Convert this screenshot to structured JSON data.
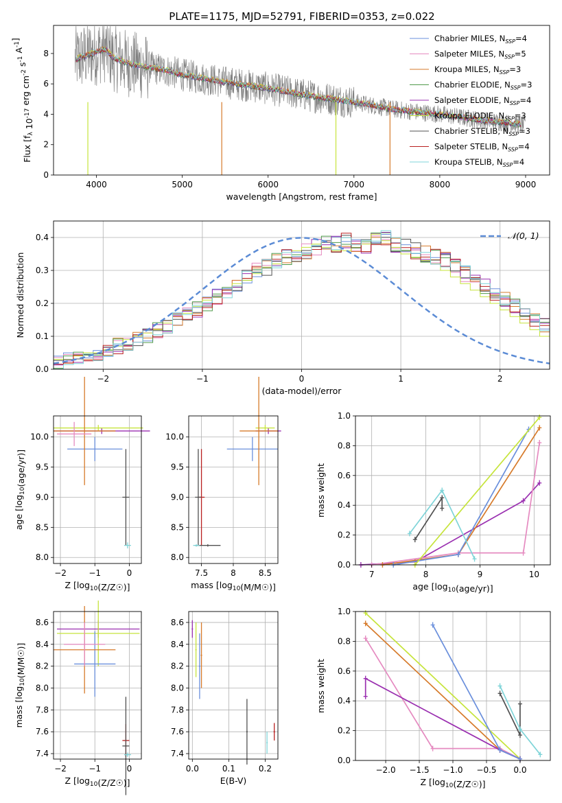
{
  "figure": {
    "title": "PLATE=1175, MJD=52791, FIBERID=0353, z=0.022"
  },
  "colors": {
    "Chabrier MILES": "#6a8fdc",
    "Salpeter MILES": "#e58ac0",
    "Kroupa MILES": "#d67a2a",
    "Chabrier ELODIE": "#4f9a4a",
    "Salpeter ELODIE": "#9a2fb0",
    "Kroupa ELODIE": "#c6e43b",
    "Chabrier STELIB": "#505050",
    "Salpeter STELIB": "#b81f1f",
    "Kroupa STELIB": "#7fd4d8",
    "data": "#808080",
    "normal_curve": "#5b8bd5"
  },
  "chart_data": [
    {
      "id": "spectrum",
      "type": "line",
      "xlabel": "wavelength [Angstrom, rest frame]",
      "ylabel": "Flux [f_λ 10^{-17} erg cm^{-2} s^{-1} A^{-1}]",
      "xlim": [
        3500,
        9280
      ],
      "ylim": [
        0,
        9.85
      ],
      "xticks": [
        4000,
        5000,
        6000,
        7000,
        8000,
        9000
      ],
      "yticks": [
        0,
        2,
        4,
        6,
        8
      ],
      "legend_loc": "upper right",
      "legend": [
        {
          "base": "Chabrier MILES, N",
          "n": "4"
        },
        {
          "base": "Salpeter MILES, N",
          "n": "5"
        },
        {
          "base": "Kroupa MILES, N",
          "n": "3"
        },
        {
          "base": "Chabrier ELODIE, N",
          "n": "3"
        },
        {
          "base": "Salpeter ELODIE, N",
          "n": "4"
        },
        {
          "base": "Kroupa ELODIE, N",
          "n": "3"
        },
        {
          "base": "Chabrier STELIB, N",
          "n": "3"
        },
        {
          "base": "Salpeter STELIB, N",
          "n": "4"
        },
        {
          "base": "Kroupa STELIB, N",
          "n": "4"
        }
      ],
      "continuum": {
        "x": [
          3750,
          3900,
          4000,
          4100,
          4200,
          4400,
          4600,
          4800,
          5000,
          5200,
          5500,
          6000,
          6500,
          7000,
          7500,
          8000,
          8500,
          9000
        ],
        "y": [
          7.6,
          7.9,
          8.1,
          8.3,
          7.7,
          7.3,
          7.1,
          6.9,
          6.6,
          6.4,
          6.1,
          5.7,
          5.2,
          4.8,
          4.3,
          4.0,
          3.6,
          3.3
        ]
      }
    },
    {
      "id": "residuals",
      "type": "area",
      "xlabel": "(data-model)/error",
      "ylabel": "Normed distribution",
      "xlim": [
        -2.5,
        2.5
      ],
      "ylim": [
        0,
        0.45
      ],
      "xticks": [
        -2,
        -1,
        0,
        1,
        2
      ],
      "yticks": [
        0.0,
        0.1,
        0.2,
        0.3,
        0.4
      ],
      "grid": true,
      "legend": [
        "𝒩(0, 1)"
      ],
      "legend_loc": "upper right",
      "bin_width": 0.1,
      "bins_from": -2.5,
      "histograms": [
        {
          "model": "Chabrier MILES",
          "values": [
            0.02,
            0.03,
            0.04,
            0.04,
            0.05,
            0.06,
            0.07,
            0.08,
            0.09,
            0.1,
            0.12,
            0.13,
            0.15,
            0.17,
            0.18,
            0.2,
            0.22,
            0.24,
            0.26,
            0.28,
            0.3,
            0.31,
            0.33,
            0.34,
            0.35,
            0.36,
            0.37,
            0.38,
            0.38,
            0.39,
            0.38,
            0.37,
            0.39,
            0.4,
            0.38,
            0.37,
            0.36,
            0.35,
            0.34,
            0.33,
            0.31,
            0.29,
            0.27,
            0.25,
            0.23,
            0.21,
            0.19,
            0.17,
            0.15,
            0.13
          ]
        },
        {
          "model": "Kroupa ELODIE",
          "values": [
            0.03,
            0.03,
            0.04,
            0.05,
            0.05,
            0.06,
            0.07,
            0.09,
            0.1,
            0.11,
            0.12,
            0.14,
            0.16,
            0.17,
            0.19,
            0.21,
            0.22,
            0.24,
            0.26,
            0.27,
            0.29,
            0.31,
            0.32,
            0.34,
            0.36,
            0.37,
            0.38,
            0.37,
            0.36,
            0.36,
            0.37,
            0.38,
            0.41,
            0.39,
            0.37,
            0.35,
            0.34,
            0.33,
            0.32,
            0.3,
            0.28,
            0.26,
            0.24,
            0.22,
            0.2,
            0.18,
            0.16,
            0.14,
            0.12,
            0.1
          ]
        }
      ],
      "normal": {
        "mean": 0,
        "sigma": 1
      }
    },
    {
      "id": "age-vs-Z",
      "type": "scatter",
      "xlabel": "Z [log10(Z/Z☉)]",
      "ylabel": "age [log10(age/yr)]",
      "xlim": [
        -2.2,
        0.35
      ],
      "ylim": [
        7.9,
        10.35
      ],
      "xticks": [
        -2,
        -1,
        0
      ],
      "yticks": [
        8.0,
        8.5,
        9.0,
        9.5,
        10.0
      ],
      "grid": true
    },
    {
      "id": "age-vs-mass",
      "type": "scatter",
      "xlabel": "mass [log10(M/M☉)]",
      "xlim": [
        7.3,
        8.7
      ],
      "ylim": [
        7.9,
        10.35
      ],
      "xticks": [
        7.5,
        8.0,
        8.5
      ],
      "yticks": [
        8.0,
        8.5,
        9.0,
        9.5,
        10.0
      ],
      "grid": true
    },
    {
      "id": "weight-vs-age",
      "type": "line",
      "xlabel": "age [log10(age/yr)]",
      "ylabel": "mass weight",
      "xlim": [
        6.7,
        10.3
      ],
      "ylim": [
        0,
        1
      ],
      "xticks": [
        7,
        8,
        9,
        10
      ],
      "yticks": [
        0.0,
        0.2,
        0.4,
        0.6,
        0.8,
        1.0
      ],
      "grid": true,
      "series": [
        {
          "model": "Salpeter ELODIE",
          "x": [
            6.8,
            7.8,
            9.8,
            10.1
          ],
          "y": [
            0.0,
            0.02,
            0.43,
            0.55
          ]
        },
        {
          "model": "Salpeter MILES",
          "x": [
            7.0,
            8.6,
            9.8,
            10.1
          ],
          "y": [
            0.0,
            0.08,
            0.08,
            0.82
          ]
        },
        {
          "model": "Kroupa MILES",
          "x": [
            7.2,
            8.6,
            10.1
          ],
          "y": [
            0.0,
            0.07,
            0.92
          ]
        },
        {
          "model": "Chabrier MILES",
          "x": [
            7.4,
            8.6,
            9.9
          ],
          "y": [
            0.0,
            0.07,
            0.91
          ]
        },
        {
          "model": "Kroupa ELODIE",
          "x": [
            7.8,
            10.1
          ],
          "y": [
            0.0,
            0.99
          ]
        },
        {
          "model": "Chabrier STELIB",
          "x": [
            7.8,
            8.3,
            8.3
          ],
          "y": [
            0.17,
            0.45,
            0.38
          ]
        },
        {
          "model": "Kroupa STELIB",
          "x": [
            7.7,
            8.3,
            8.9
          ],
          "y": [
            0.21,
            0.5,
            0.04
          ]
        }
      ]
    },
    {
      "id": "mass-vs-Z",
      "type": "scatter",
      "xlabel": "Z [log10(Z/Z☉)]",
      "ylabel": "mass [log10(M/M☉)]",
      "xlim": [
        -2.2,
        0.35
      ],
      "ylim": [
        7.35,
        8.7
      ],
      "xticks": [
        -2,
        -1,
        0
      ],
      "yticks": [
        7.4,
        7.6,
        7.8,
        8.0,
        8.2,
        8.4,
        8.6
      ],
      "grid": true
    },
    {
      "id": "mass-vs-ebv",
      "type": "scatter",
      "xlabel": "E(B-V)",
      "xlim": [
        -0.01,
        0.235
      ],
      "ylim": [
        7.35,
        8.7
      ],
      "xticks": [
        0.0,
        0.1,
        0.2
      ],
      "yticks": [
        7.4,
        7.6,
        7.8,
        8.0,
        8.2,
        8.4,
        8.6
      ],
      "grid": true
    },
    {
      "id": "weight-vs-Z",
      "type": "line",
      "xlabel": "Z [log10(Z/Z☉)]",
      "ylabel": "mass weight",
      "xlim": [
        -2.45,
        0.45
      ],
      "ylim": [
        0,
        1
      ],
      "xticks": [
        -2.0,
        -1.5,
        -1.0,
        -0.5,
        0.0
      ],
      "yticks": [
        0.0,
        0.2,
        0.4,
        0.6,
        0.8,
        1.0
      ],
      "grid": true,
      "series": [
        {
          "model": "Kroupa ELODIE",
          "x": [
            -2.3,
            0.0
          ],
          "y": [
            0.99,
            0.01
          ]
        },
        {
          "model": "Kroupa MILES",
          "x": [
            -2.3,
            -0.3,
            0.0
          ],
          "y": [
            0.92,
            0.07,
            0.01
          ]
        },
        {
          "model": "Salpeter MILES",
          "x": [
            -2.3,
            -1.3,
            -0.3,
            0.0
          ],
          "y": [
            0.82,
            0.08,
            0.08,
            0.01
          ]
        },
        {
          "model": "Salpeter ELODIE",
          "x": [
            -2.3,
            -2.3,
            -0.3,
            0.0
          ],
          "y": [
            0.43,
            0.55,
            0.07,
            0.01
          ]
        },
        {
          "model": "Chabrier MILES",
          "x": [
            -1.3,
            -0.3,
            0.0
          ],
          "y": [
            0.91,
            0.07,
            0.01
          ]
        },
        {
          "model": "Chabrier STELIB",
          "x": [
            -0.3,
            0.0,
            0.0
          ],
          "y": [
            0.45,
            0.17,
            0.38
          ]
        },
        {
          "model": "Kroupa STELIB",
          "x": [
            -0.3,
            0.0,
            0.3
          ],
          "y": [
            0.5,
            0.21,
            0.04
          ]
        }
      ]
    }
  ]
}
